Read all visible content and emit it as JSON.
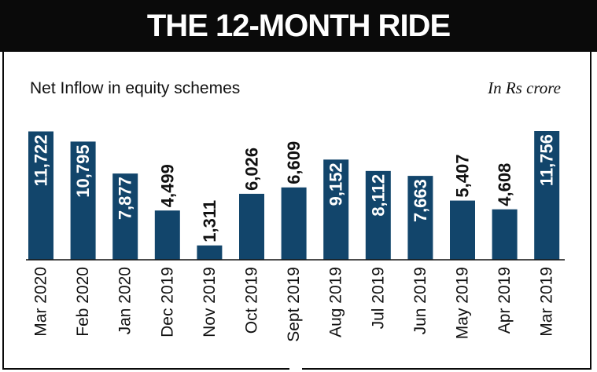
{
  "header": {
    "title": "THE 12-MONTH RIDE"
  },
  "labels": {
    "subtitle": "Net Inflow in equity schemes",
    "unit": "In Rs crore"
  },
  "colors": {
    "bar": "#12456b",
    "header_bg": "#0a0a0a",
    "inside_label": "#ffffff",
    "outside_label": "#111111"
  },
  "chart_data": {
    "type": "bar",
    "title": "THE 12-MONTH RIDE",
    "subtitle": "Net Inflow in equity schemes",
    "ylabel": "In Rs crore",
    "xlabel": "",
    "categories": [
      "Mar 2020",
      "Feb 2020",
      "Jan 2020",
      "Dec 2019",
      "Nov 2019",
      "Oct 2019",
      "Sept 2019",
      "Aug 2019",
      "Jul 2019",
      "Jun 2019",
      "May 2019",
      "Apr 2019",
      "Mar 2019"
    ],
    "values": [
      11722,
      10795,
      7877,
      4499,
      1311,
      6026,
      6609,
      9152,
      8112,
      7663,
      5407,
      4608,
      11756
    ],
    "value_labels": [
      "11,722",
      "10,795",
      "7,877",
      "4,499",
      "1,311",
      "6,026",
      "6,609",
      "9,152",
      "8,112",
      "7,663",
      "5,407",
      "4,608",
      "11,756"
    ],
    "label_inside_bar": [
      true,
      true,
      true,
      false,
      false,
      false,
      false,
      true,
      true,
      true,
      false,
      false,
      true
    ],
    "ylim": [
      0,
      11756
    ],
    "grid": false,
    "legend": "none"
  }
}
